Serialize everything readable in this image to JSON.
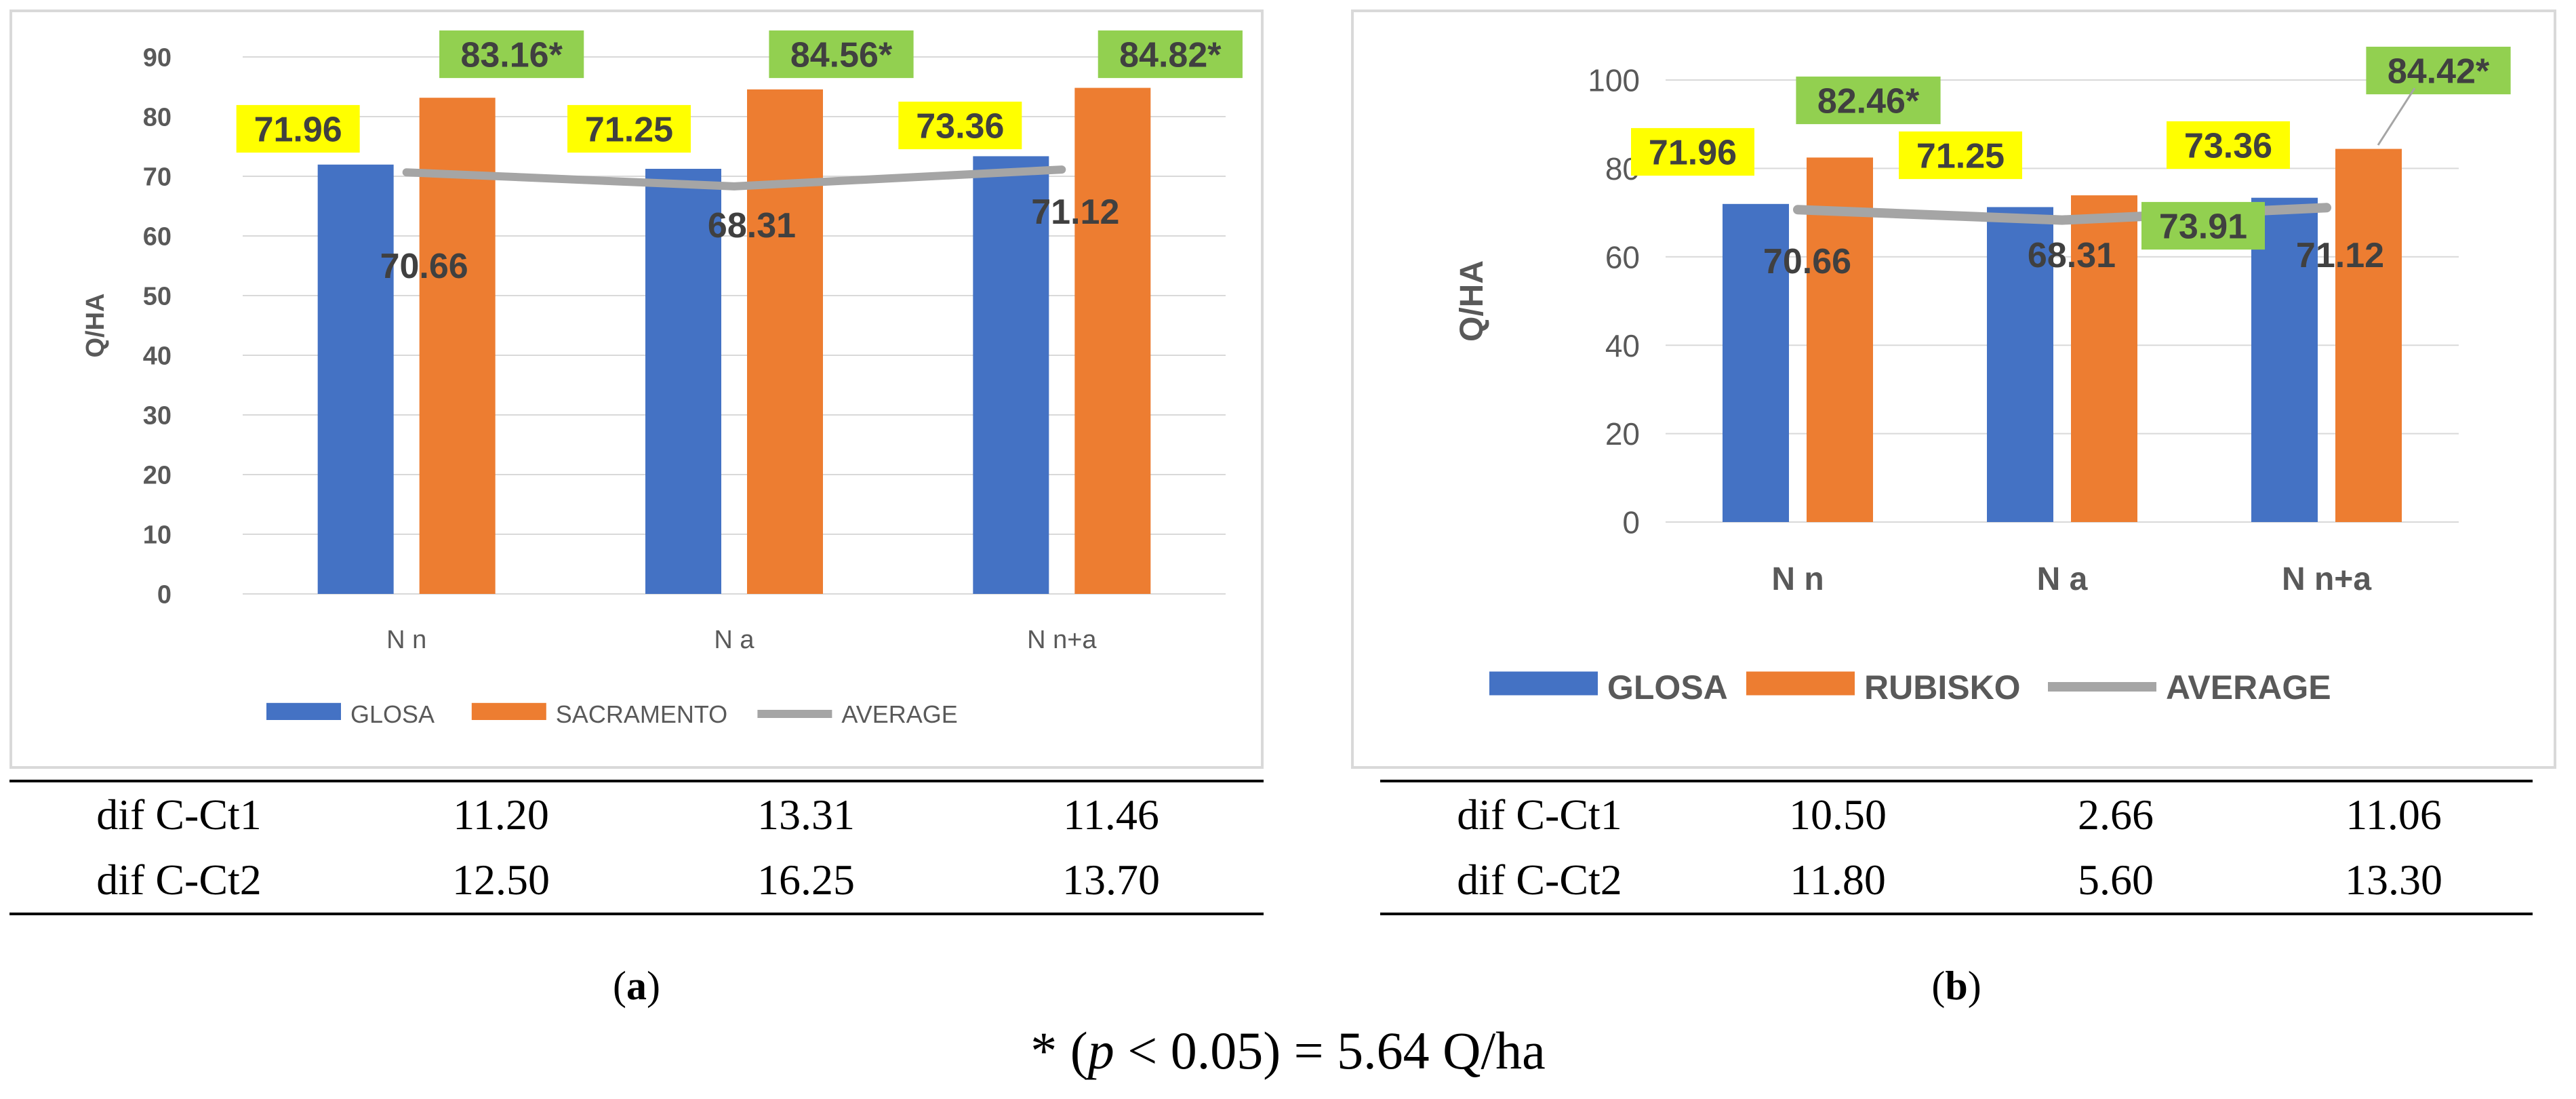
{
  "chart_data": [
    {
      "type": "bar",
      "panel": "a",
      "categories": [
        "N n",
        "N a",
        "N n+a"
      ],
      "ylabel": "Q/HA",
      "ylim": [
        0,
        90
      ],
      "yticks": [
        0,
        10,
        20,
        30,
        40,
        50,
        60,
        70,
        80,
        90
      ],
      "grid": true,
      "legend_position": "bottom",
      "series": [
        {
          "name": "GLOSA",
          "type": "bar",
          "color": "#4472c4",
          "values": [
            71.96,
            71.25,
            73.36
          ],
          "labels": [
            "71.96",
            "71.25",
            "73.36"
          ],
          "label_bg": "#ffff00"
        },
        {
          "name": "SACRAMENTO",
          "type": "bar",
          "color": "#ed7d31",
          "values": [
            83.16,
            84.56,
            84.82
          ],
          "labels": [
            "83.16*",
            "84.56*",
            "84.82*"
          ],
          "label_bg": "#92d050"
        },
        {
          "name": "AVERAGE",
          "type": "line",
          "color": "#a5a5a5",
          "values": [
            70.66,
            68.31,
            71.12
          ],
          "labels": [
            "70.66",
            "68.31",
            "71.12"
          ]
        }
      ],
      "table": {
        "rows": [
          {
            "label": "dif C-Ct1",
            "values": [
              "11.20",
              "13.31",
              "11.46"
            ]
          },
          {
            "label": "dif C-Ct2",
            "values": [
              "12.50",
              "16.25",
              "13.70"
            ]
          }
        ]
      },
      "panel_label": "a"
    },
    {
      "type": "bar",
      "panel": "b",
      "categories": [
        "N n",
        "N a",
        "N n+a"
      ],
      "ylabel": "Q/HA",
      "ylim": [
        0,
        100
      ],
      "yticks": [
        0,
        20,
        40,
        60,
        80,
        100
      ],
      "grid": true,
      "legend_position": "bottom",
      "series": [
        {
          "name": "GLOSA",
          "type": "bar",
          "color": "#4472c4",
          "values": [
            71.96,
            71.25,
            73.36
          ],
          "labels": [
            "71.96",
            "71.25",
            "73.36"
          ],
          "label_bg": "#ffff00"
        },
        {
          "name": "RUBISKO",
          "type": "bar",
          "color": "#ed7d31",
          "values": [
            82.46,
            73.91,
            84.42
          ],
          "labels": [
            "82.46*",
            "73.91",
            "84.42*"
          ],
          "label_bg": "#92d050"
        },
        {
          "name": "AVERAGE",
          "type": "line",
          "color": "#a5a5a5",
          "values": [
            70.66,
            68.31,
            71.12
          ],
          "labels": [
            "70.66",
            "68.31",
            "71.12"
          ]
        }
      ],
      "table": {
        "rows": [
          {
            "label": "dif C-Ct1",
            "values": [
              "10.50",
              "2.66",
              "11.06"
            ]
          },
          {
            "label": "dif C-Ct2",
            "values": [
              "11.80",
              "5.60",
              "13.30"
            ]
          }
        ]
      },
      "panel_label": "b"
    }
  ],
  "footnote": {
    "prefix": "* (",
    "p": "p",
    "suffix": " < 0.05) = 5.64 Q/ha"
  }
}
